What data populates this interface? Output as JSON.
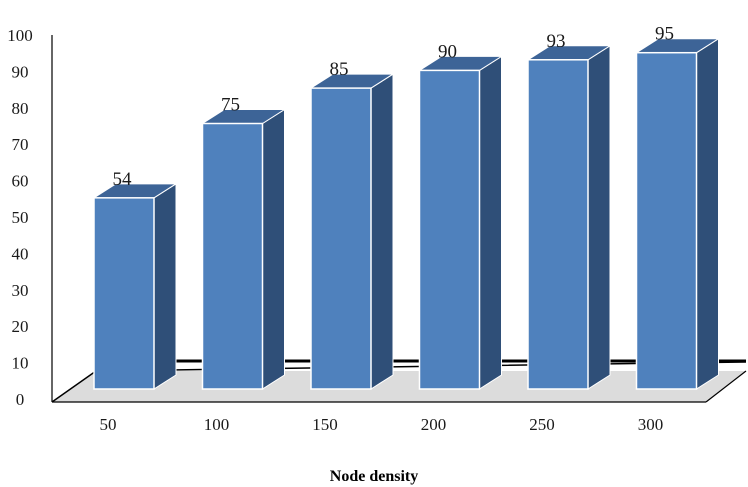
{
  "chart_data": {
    "type": "bar",
    "title": "",
    "xlabel": "Node density",
    "ylabel": "",
    "categories": [
      "50",
      "100",
      "150",
      "200",
      "250",
      "300"
    ],
    "values": [
      54,
      75,
      85,
      90,
      93,
      95
    ],
    "ylim": [
      0,
      100
    ],
    "yticks": [
      0,
      10,
      20,
      30,
      40,
      50,
      60,
      70,
      80,
      90,
      100
    ],
    "grid": false,
    "legend": "none",
    "style": "3d-column",
    "colors": {
      "bar_front": "#4f81bd",
      "bar_side": "#2f4f78",
      "bar_top": "#3d6497",
      "bar_edge": "#ffffff",
      "floor": "#ffffff",
      "floor_shadow": "#dcdcdc",
      "axis": "#000000"
    }
  }
}
